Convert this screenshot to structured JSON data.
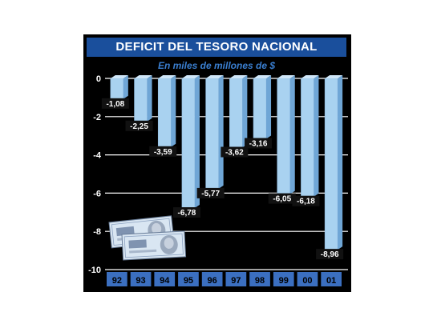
{
  "header": {
    "title": "DEFICIT DEL TESORO NACIONAL",
    "subtitle": "En miles de millones de $"
  },
  "colors": {
    "frame": "#000000",
    "title_bg": "#1a4f9c",
    "bar_face": "#a9d2f0",
    "bar_side": "#6fa6d6",
    "category_bg": "#3b6fc0"
  },
  "chart_data": {
    "type": "bar",
    "title": "DEFICIT DEL TESORO NACIONAL",
    "subtitle": "En miles de millones de $",
    "categories": [
      "92",
      "93",
      "94",
      "95",
      "96",
      "97",
      "98",
      "99",
      "00",
      "01"
    ],
    "values": [
      -1.08,
      -2.25,
      -3.59,
      -6.78,
      -5.77,
      -3.62,
      -3.16,
      -6.05,
      -6.18,
      -8.96
    ],
    "value_labels": [
      "-1,08",
      "-2,25",
      "-3,59",
      "-6,78",
      "-5,77",
      "-3,62",
      "-3,16",
      "-6,05",
      "-6,18",
      "-8,96"
    ],
    "yticks": [
      0,
      -2,
      -4,
      -6,
      -8,
      -10
    ],
    "ytick_labels": [
      "0",
      "-2",
      "-4",
      "-6",
      "-8",
      "-10"
    ],
    "ylim": [
      -10,
      0
    ],
    "xlabel": "",
    "ylabel": "",
    "grid": true
  }
}
